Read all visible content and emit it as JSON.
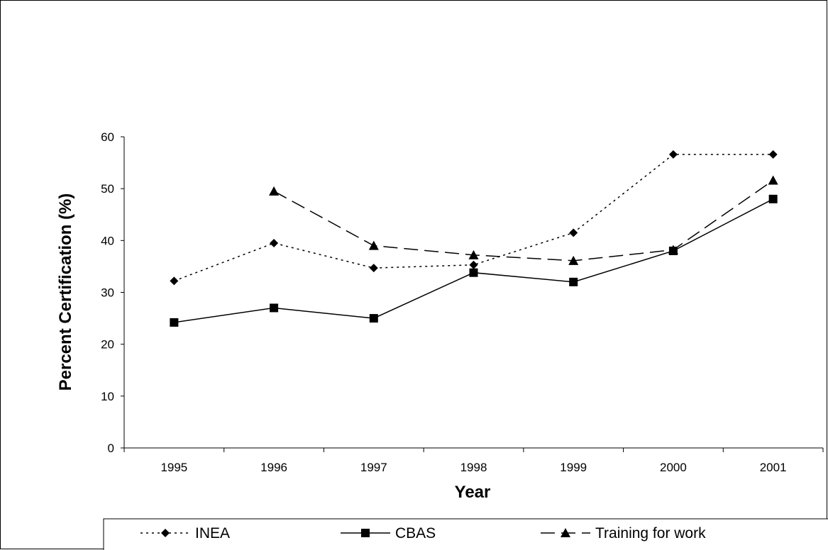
{
  "chart_data": {
    "type": "line",
    "title": "",
    "xlabel": "Year",
    "ylabel": "Percent Certification (%)",
    "categories": [
      "1995",
      "1996",
      "1997",
      "1998",
      "1999",
      "2000",
      "2001"
    ],
    "ylim": [
      0,
      60
    ],
    "yticks": [
      0,
      10,
      20,
      30,
      40,
      50,
      60
    ],
    "grid": false,
    "legend_position": "bottom",
    "series": [
      {
        "name": "INEA",
        "marker": "diamond",
        "line_style": "dotted",
        "color": "#000000",
        "values": [
          32.2,
          39.5,
          34.7,
          35.3,
          41.5,
          56.6,
          56.6
        ]
      },
      {
        "name": "CBAS",
        "marker": "square",
        "line_style": "solid",
        "color": "#000000",
        "values": [
          24.2,
          27.0,
          25.0,
          33.8,
          32.0,
          38.0,
          48.0
        ]
      },
      {
        "name": "Training for work",
        "marker": "triangle",
        "line_style": "dashed",
        "color": "#000000",
        "values": [
          null,
          49.5,
          39.0,
          37.2,
          36.1,
          38.2,
          51.6
        ]
      }
    ]
  }
}
